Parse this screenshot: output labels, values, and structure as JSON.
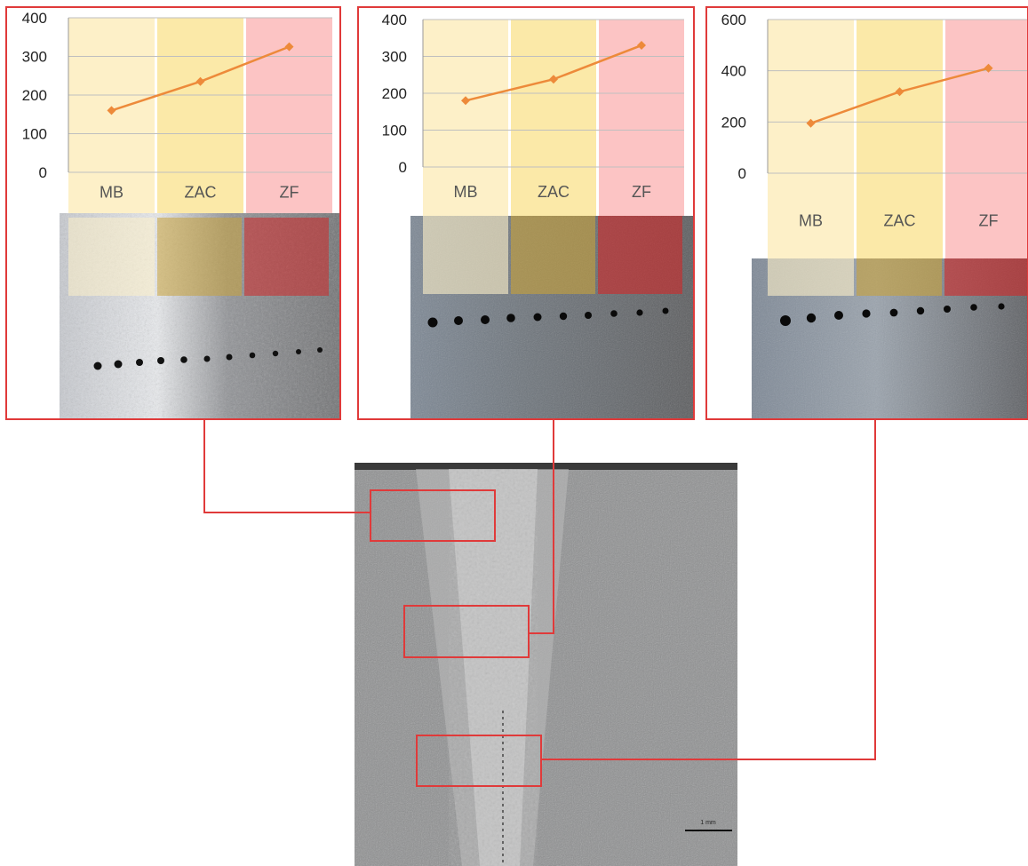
{
  "figure": {
    "scale_bar_label": "1 mm",
    "colors": {
      "frame": "#e03a3a",
      "line": "#ed8a3a",
      "band_mb": "#fdf0c8",
      "band_zac": "#fbe9a8",
      "band_zf": "#fcc4c4",
      "gridline": "#bfbfbf"
    }
  },
  "chart_data": [
    {
      "type": "line",
      "categories": [
        "MB",
        "ZAC",
        "ZF"
      ],
      "values": [
        160,
        235,
        325
      ],
      "ylim": [
        0,
        400
      ],
      "yticks": [
        0,
        100,
        200,
        300,
        400
      ],
      "grid": true
    },
    {
      "type": "line",
      "categories": [
        "MB",
        "ZAC",
        "ZF"
      ],
      "values": [
        180,
        238,
        330
      ],
      "ylim": [
        0,
        400
      ],
      "yticks": [
        0,
        100,
        200,
        300,
        400
      ],
      "grid": true
    },
    {
      "type": "line",
      "categories": [
        "MB",
        "ZAC",
        "ZF"
      ],
      "values": [
        195,
        318,
        410
      ],
      "ylim": [
        0,
        600
      ],
      "yticks": [
        0,
        200,
        400,
        600
      ],
      "grid": true
    }
  ]
}
